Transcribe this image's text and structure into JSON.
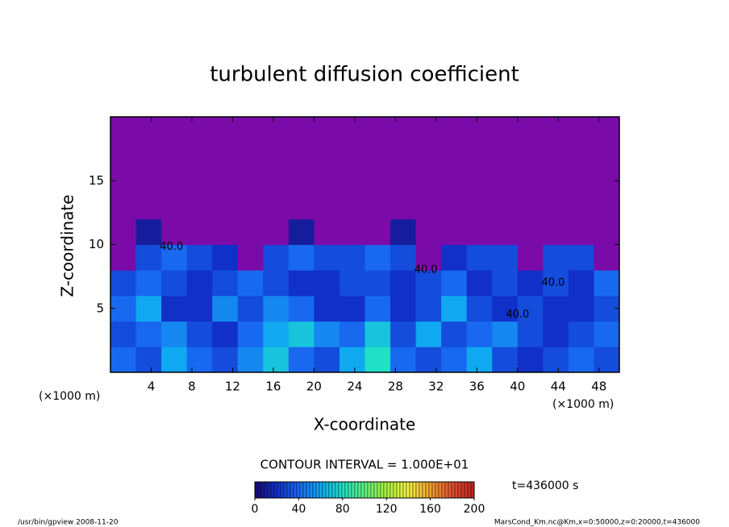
{
  "chart_data": {
    "type": "heatmap",
    "title": "turbulent diffusion coefficient",
    "x_label": "X-coordinate",
    "y_label": "Z-coordinate",
    "x_unit": "(×1000 m)",
    "x_unit_right": "(×1000 m)",
    "xlim": [
      0,
      50
    ],
    "ylim": [
      0,
      20
    ],
    "xticks": [
      4,
      8,
      12,
      16,
      20,
      24,
      28,
      32,
      36,
      40,
      44,
      48
    ],
    "yticks": [
      5,
      10,
      15
    ],
    "z": [
      [
        40,
        30,
        60,
        40,
        30,
        50,
        70,
        40,
        30,
        60,
        80,
        40,
        30,
        40,
        60,
        30,
        20,
        30,
        40,
        30
      ],
      [
        30,
        40,
        50,
        30,
        20,
        40,
        60,
        70,
        50,
        40,
        70,
        30,
        60,
        30,
        40,
        50,
        30,
        20,
        30,
        40
      ],
      [
        40,
        60,
        20,
        20,
        50,
        30,
        50,
        40,
        20,
        20,
        40,
        20,
        30,
        60,
        30,
        20,
        30,
        20,
        20,
        30
      ],
      [
        30,
        40,
        30,
        20,
        30,
        40,
        30,
        20,
        20,
        30,
        30,
        20,
        30,
        40,
        20,
        30,
        20,
        30,
        20,
        40
      ],
      [
        null,
        30,
        40,
        30,
        20,
        null,
        30,
        40,
        30,
        30,
        40,
        30,
        null,
        20,
        30,
        30,
        null,
        30,
        30,
        null
      ],
      [
        null,
        10,
        null,
        null,
        null,
        null,
        null,
        10,
        null,
        null,
        null,
        10,
        null,
        null,
        null,
        null,
        null,
        null,
        null,
        null
      ],
      [
        null,
        null,
        null,
        null,
        null,
        null,
        null,
        null,
        null,
        null,
        null,
        null,
        null,
        null,
        null,
        null,
        null,
        null,
        null,
        null
      ],
      [
        null,
        null,
        null,
        null,
        null,
        null,
        null,
        null,
        null,
        null,
        null,
        null,
        null,
        null,
        null,
        null,
        null,
        null,
        null,
        null
      ],
      [
        null,
        null,
        null,
        null,
        null,
        null,
        null,
        null,
        null,
        null,
        null,
        null,
        null,
        null,
        null,
        null,
        null,
        null,
        null,
        null
      ],
      [
        null,
        null,
        null,
        null,
        null,
        null,
        null,
        null,
        null,
        null,
        null,
        null,
        null,
        null,
        null,
        null,
        null,
        null,
        null,
        null
      ]
    ],
    "null_color": "#7b0ba8",
    "colorscale": [
      [
        0,
        "#1a0a70"
      ],
      [
        20,
        "#1030c8"
      ],
      [
        40,
        "#1868f0"
      ],
      [
        60,
        "#10a8f0"
      ],
      [
        80,
        "#20e0c8"
      ],
      [
        100,
        "#60f080"
      ],
      [
        120,
        "#a8f040"
      ],
      [
        140,
        "#f0f040"
      ],
      [
        160,
        "#f0a030"
      ],
      [
        180,
        "#e05030"
      ],
      [
        200,
        "#c02020"
      ]
    ],
    "annotations": [
      {
        "text": "40.0",
        "x": 43.5,
        "y": 7
      },
      {
        "text": "40.0",
        "x": 40,
        "y": 4.5
      },
      {
        "text": "40.0",
        "x": 31,
        "y": 8
      },
      {
        "text": "40.0",
        "x": 6,
        "y": 9.8
      }
    ],
    "contour_interval": "CONTOUR INTERVAL = 1.000E+01",
    "colorbar": {
      "lim": [
        0,
        200
      ],
      "ticks": [
        0,
        40,
        80,
        120,
        160,
        200
      ]
    },
    "time_label": "t=436000 s",
    "footer_left": "/usr/bin/gpview  2008-11-20",
    "footer_right": "MarsCond_Km.nc@Km,x=0:50000,z=0:20000,t=436000"
  }
}
